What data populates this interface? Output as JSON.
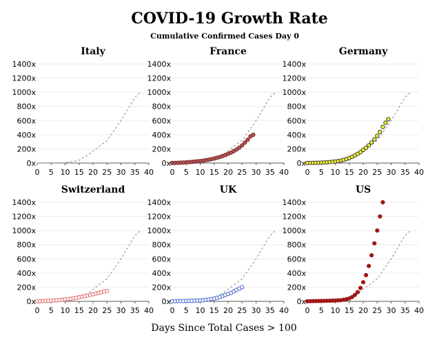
{
  "chart_data": {
    "type": "scatter",
    "title": "COVID-19 Growth Rate",
    "subtitle": "Cumulative Confirmed Cases Day 0",
    "xlabel": "Days Since Total Cases > 100",
    "xlim": [
      0,
      40
    ],
    "ylim": [
      0,
      1400
    ],
    "x_ticks": [
      0,
      5,
      10,
      15,
      20,
      25,
      30,
      35,
      40
    ],
    "y_ticks": [
      0,
      200,
      400,
      600,
      800,
      1000,
      1200,
      1400
    ],
    "y_tick_suffix": "x",
    "grid": true,
    "reference_line": {
      "style": "dashed",
      "color": "#9a9a9a",
      "points": [
        [
          0,
          0
        ],
        [
          5,
          1
        ],
        [
          10,
          5
        ],
        [
          15,
          40
        ],
        [
          18,
          110
        ],
        [
          20,
          170
        ],
        [
          25,
          320
        ],
        [
          30,
          600
        ],
        [
          35,
          930
        ],
        [
          37,
          1000
        ]
      ]
    },
    "panels": [
      {
        "name": "Italy",
        "marker": "none",
        "fill": "none",
        "stroke": "none",
        "points": []
      },
      {
        "name": "France",
        "marker": "circle",
        "fill": "#b35a5a",
        "stroke": "#7a2020",
        "points": [
          [
            0,
            1
          ],
          [
            1,
            2
          ],
          [
            2,
            4
          ],
          [
            3,
            6
          ],
          [
            4,
            8
          ],
          [
            5,
            10
          ],
          [
            6,
            13
          ],
          [
            7,
            16
          ],
          [
            8,
            20
          ],
          [
            9,
            24
          ],
          [
            10,
            28
          ],
          [
            11,
            33
          ],
          [
            12,
            40
          ],
          [
            13,
            47
          ],
          [
            14,
            55
          ],
          [
            15,
            64
          ],
          [
            16,
            74
          ],
          [
            17,
            86
          ],
          [
            18,
            99
          ],
          [
            19,
            113
          ],
          [
            20,
            130
          ],
          [
            21,
            148
          ],
          [
            22,
            168
          ],
          [
            23,
            192
          ],
          [
            24,
            218
          ],
          [
            25,
            250
          ],
          [
            26,
            290
          ],
          [
            27,
            330
          ],
          [
            28,
            375
          ],
          [
            29,
            400
          ]
        ]
      },
      {
        "name": "Germany",
        "marker": "circle",
        "fill": "#ffff33",
        "stroke": "#333333",
        "points": [
          [
            0,
            1
          ],
          [
            1,
            2
          ],
          [
            2,
            3
          ],
          [
            3,
            4
          ],
          [
            4,
            5
          ],
          [
            5,
            7
          ],
          [
            6,
            9
          ],
          [
            7,
            11
          ],
          [
            8,
            14
          ],
          [
            9,
            18
          ],
          [
            10,
            22
          ],
          [
            11,
            28
          ],
          [
            12,
            35
          ],
          [
            13,
            45
          ],
          [
            14,
            57
          ],
          [
            15,
            72
          ],
          [
            16,
            88
          ],
          [
            17,
            108
          ],
          [
            18,
            130
          ],
          [
            19,
            155
          ],
          [
            20,
            185
          ],
          [
            21,
            215
          ],
          [
            22,
            250
          ],
          [
            23,
            290
          ],
          [
            24,
            335
          ],
          [
            25,
            385
          ],
          [
            26,
            440
          ],
          [
            27,
            510
          ],
          [
            28,
            570
          ],
          [
            29,
            620
          ]
        ]
      },
      {
        "name": "Switzerland",
        "marker": "circle",
        "fill": "#ffffff",
        "stroke": "#e06666",
        "points": [
          [
            0,
            1
          ],
          [
            1,
            2
          ],
          [
            2,
            4
          ],
          [
            3,
            6
          ],
          [
            4,
            8
          ],
          [
            5,
            10
          ],
          [
            6,
            12
          ],
          [
            7,
            15
          ],
          [
            8,
            18
          ],
          [
            9,
            22
          ],
          [
            10,
            27
          ],
          [
            11,
            32
          ],
          [
            12,
            37
          ],
          [
            13,
            43
          ],
          [
            14,
            50
          ],
          [
            15,
            58
          ],
          [
            16,
            66
          ],
          [
            17,
            74
          ],
          [
            18,
            82
          ],
          [
            19,
            91
          ],
          [
            20,
            100
          ],
          [
            21,
            110
          ],
          [
            22,
            120
          ],
          [
            23,
            130
          ],
          [
            24,
            140
          ],
          [
            25,
            148
          ]
        ]
      },
      {
        "name": "UK",
        "marker": "circle",
        "fill": "#ffffff",
        "stroke": "#4466cc",
        "points": [
          [
            0,
            1
          ],
          [
            1,
            2
          ],
          [
            2,
            3
          ],
          [
            3,
            4
          ],
          [
            4,
            5
          ],
          [
            5,
            6
          ],
          [
            6,
            7
          ],
          [
            7,
            8
          ],
          [
            8,
            9
          ],
          [
            9,
            11
          ],
          [
            10,
            13
          ],
          [
            11,
            16
          ],
          [
            12,
            20
          ],
          [
            13,
            25
          ],
          [
            14,
            32
          ],
          [
            15,
            40
          ],
          [
            16,
            50
          ],
          [
            17,
            62
          ],
          [
            18,
            75
          ],
          [
            19,
            90
          ],
          [
            20,
            105
          ],
          [
            21,
            120
          ],
          [
            22,
            140
          ],
          [
            23,
            160
          ],
          [
            24,
            180
          ],
          [
            25,
            200
          ]
        ]
      },
      {
        "name": "US",
        "marker": "circle",
        "fill": "#a01818",
        "stroke": "#a01818",
        "points": [
          [
            0,
            1
          ],
          [
            1,
            2
          ],
          [
            2,
            3
          ],
          [
            3,
            4
          ],
          [
            4,
            5
          ],
          [
            5,
            6
          ],
          [
            6,
            7
          ],
          [
            7,
            8
          ],
          [
            8,
            9
          ],
          [
            9,
            10
          ],
          [
            10,
            12
          ],
          [
            11,
            14
          ],
          [
            12,
            17
          ],
          [
            13,
            22
          ],
          [
            14,
            30
          ],
          [
            15,
            42
          ],
          [
            16,
            60
          ],
          [
            17,
            90
          ],
          [
            18,
            130
          ],
          [
            19,
            190
          ],
          [
            20,
            270
          ],
          [
            21,
            370
          ],
          [
            22,
            500
          ],
          [
            23,
            650
          ],
          [
            24,
            820
          ],
          [
            25,
            1000
          ],
          [
            26,
            1200
          ],
          [
            27,
            1400
          ]
        ]
      }
    ]
  }
}
